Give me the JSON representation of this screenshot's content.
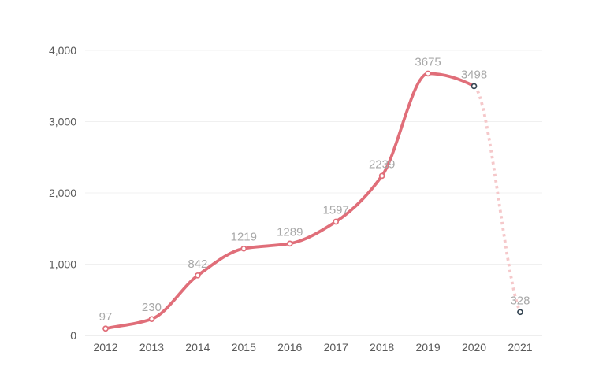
{
  "chart_data": {
    "type": "line",
    "categories": [
      "2012",
      "2013",
      "2014",
      "2015",
      "2016",
      "2017",
      "2018",
      "2019",
      "2020",
      "2021"
    ],
    "values": [
      97,
      230,
      842,
      1219,
      1289,
      1597,
      2239,
      3675,
      3498,
      328
    ],
    "point_labels": [
      "97",
      "230",
      "842",
      "1219",
      "1289",
      "1597",
      "2239",
      "3675",
      "3498",
      "328"
    ],
    "y_ticks": [
      {
        "value": 0,
        "label": "0"
      },
      {
        "value": 1000,
        "label": "1,000"
      },
      {
        "value": 2000,
        "label": "2,000"
      },
      {
        "value": 3000,
        "label": "3,000"
      },
      {
        "value": 4000,
        "label": "4,000"
      }
    ],
    "ylim": [
      0,
      4000
    ],
    "grid": "horizontal",
    "legend": "none",
    "title": "",
    "xlabel": "",
    "ylabel": "",
    "solid_segment": {
      "from": "2012",
      "to": "2020",
      "style": "solid"
    },
    "projected_segment": {
      "from": "2020",
      "to": "2021",
      "style": "dotted"
    },
    "dark_marker_categories": [
      "2020",
      "2021"
    ],
    "colors": {
      "line": "#e06e79",
      "projected_line": "#f5c8ca",
      "marker_fill": "#ffffff",
      "marker_stroke": "#e06e79",
      "marker_stroke_dark": "#364653",
      "point_label": "#a8a8a8",
      "axis_label": "#5a5a5a",
      "gridline": "#f0f0f0",
      "baseline": "#dddddd",
      "background": "#ffffff"
    }
  }
}
